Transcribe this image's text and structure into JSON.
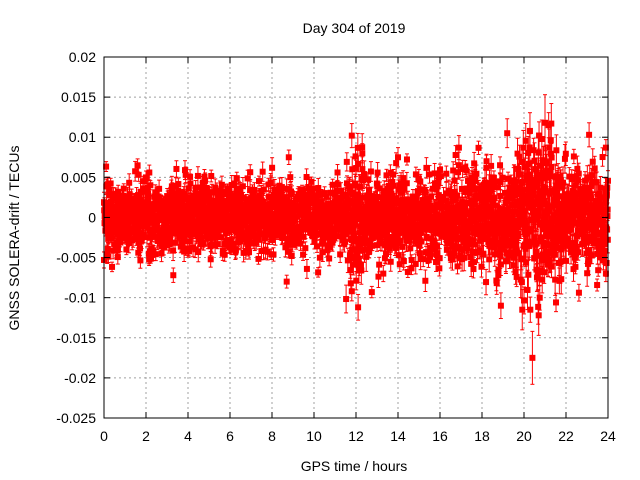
{
  "chart_data": {
    "type": "scatter",
    "title": "Day 304 of 2019",
    "xlabel": "GPS time / hours",
    "ylabel": "GNSS SOLERA-drift / TECUs",
    "xlim": [
      0,
      24
    ],
    "ylim": [
      -0.025,
      0.02
    ],
    "x_ticks": [
      0,
      2,
      4,
      6,
      8,
      10,
      12,
      14,
      16,
      18,
      20,
      22,
      24
    ],
    "y_ticks": [
      -0.025,
      -0.02,
      -0.015,
      -0.01,
      -0.005,
      0,
      0.005,
      0.01,
      0.015,
      0.02
    ],
    "x_tick_labels": [
      "0",
      "2",
      "4",
      "6",
      "8",
      "10",
      "12",
      "14",
      "16",
      "18",
      "20",
      "22",
      "24"
    ],
    "y_tick_labels": [
      "-0.025",
      "-0.02",
      "-0.015",
      "-0.01",
      "-0.005",
      "0",
      "0.005",
      "0.01",
      "0.015",
      "0.02"
    ],
    "grid": true,
    "color": "#ff0000",
    "marker": "square",
    "error_bars": true,
    "sampling_interval_hours": 0.00833,
    "notable_points": [
      {
        "x": 0.0,
        "y": -0.0053,
        "err": 0.001
      },
      {
        "x": 1.6,
        "y": 0.0065,
        "err": 0.0008
      },
      {
        "x": 3.3,
        "y": -0.0072,
        "err": 0.0009
      },
      {
        "x": 8.7,
        "y": -0.008,
        "err": 0.0008
      },
      {
        "x": 8.8,
        "y": 0.0075,
        "err": 0.0009
      },
      {
        "x": 11.8,
        "y": 0.0102,
        "err": 0.0015
      },
      {
        "x": 11.8,
        "y": -0.0092,
        "err": 0.0012
      },
      {
        "x": 12.1,
        "y": -0.0112,
        "err": 0.0016
      },
      {
        "x": 12.3,
        "y": 0.008,
        "err": 0.0012
      },
      {
        "x": 13.3,
        "y": -0.007,
        "err": 0.001
      },
      {
        "x": 14.0,
        "y": 0.0075,
        "err": 0.0012
      },
      {
        "x": 16.9,
        "y": 0.0087,
        "err": 0.0015
      },
      {
        "x": 18.9,
        "y": -0.011,
        "err": 0.0016
      },
      {
        "x": 19.2,
        "y": 0.0105,
        "err": 0.0018
      },
      {
        "x": 20.4,
        "y": -0.0175,
        "err": 0.0033
      },
      {
        "x": 20.7,
        "y": -0.0122,
        "err": 0.0025
      },
      {
        "x": 21.0,
        "y": 0.0118,
        "err": 0.0035
      },
      {
        "x": 21.3,
        "y": 0.0117,
        "err": 0.0025
      },
      {
        "x": 23.1,
        "y": 0.0103,
        "err": 0.0015
      },
      {
        "x": 23.9,
        "y": 0.0087,
        "err": 0.001
      },
      {
        "x": 23.9,
        "y": -0.007,
        "err": 0.001
      }
    ],
    "noise_profile": [
      {
        "x_from": 0,
        "x_to": 11.5,
        "std": 0.0022,
        "err": 0.0009
      },
      {
        "x_from": 11.5,
        "x_to": 12.6,
        "std": 0.0036,
        "err": 0.0013
      },
      {
        "x_from": 12.6,
        "x_to": 16.5,
        "std": 0.0026,
        "err": 0.001
      },
      {
        "x_from": 16.5,
        "x_to": 19.5,
        "std": 0.0032,
        "err": 0.0012
      },
      {
        "x_from": 19.5,
        "x_to": 22.0,
        "std": 0.0045,
        "err": 0.0018
      },
      {
        "x_from": 22.0,
        "x_to": 24,
        "std": 0.003,
        "err": 0.0012
      }
    ]
  }
}
